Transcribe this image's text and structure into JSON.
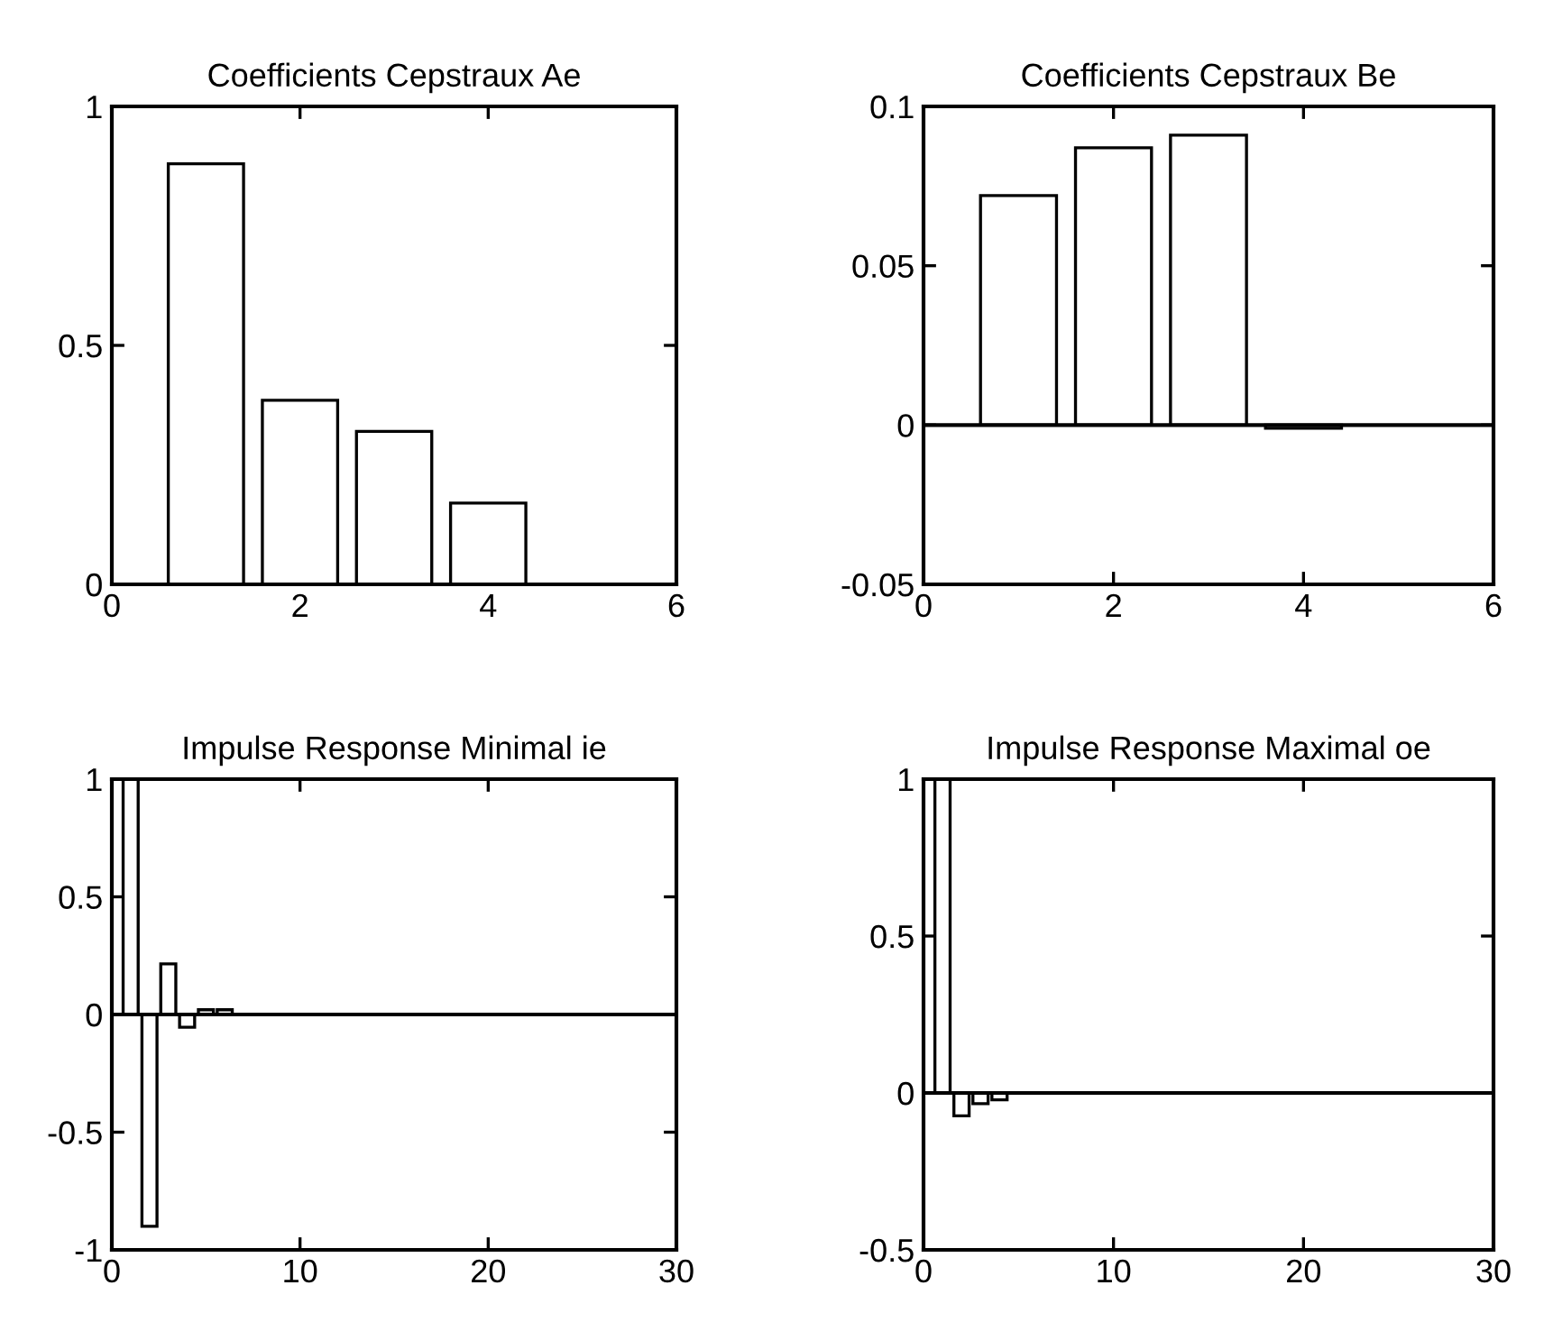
{
  "chart_data": [
    {
      "type": "bar",
      "title": "Coefficients Cepstraux Ae",
      "x": [
        1,
        2,
        3,
        4
      ],
      "values": [
        0.88,
        0.385,
        0.32,
        0.17
      ],
      "color": "#ffffff",
      "xlim": [
        0,
        6
      ],
      "xticks": [
        0,
        2,
        4,
        6
      ],
      "ylim": [
        0,
        1
      ],
      "yticks": [
        0,
        0.5,
        1
      ],
      "grid": false
    },
    {
      "type": "bar",
      "title": "Coefficients Cepstraux Be",
      "x": [
        1,
        2,
        3,
        4
      ],
      "values": [
        0.072,
        0.087,
        0.091,
        -0.001
      ],
      "color": "#ffffff",
      "xlim": [
        0,
        6
      ],
      "xticks": [
        0,
        2,
        4,
        6
      ],
      "ylim": [
        -0.05,
        0.1
      ],
      "yticks": [
        -0.05,
        0,
        0.05,
        0.1
      ],
      "ref_lines": [
        {
          "axis": "y",
          "value": 0,
          "color": "#000000"
        }
      ],
      "grid": false
    },
    {
      "type": "bar",
      "title": "Impulse Response Minimal ie",
      "x": [
        1,
        2,
        3,
        4,
        5,
        6
      ],
      "values": [
        1,
        -0.9,
        0.215,
        -0.054,
        0.02,
        0.02
      ],
      "color": "#ffffff",
      "xlim": [
        0,
        30
      ],
      "xticks": [
        0,
        10,
        20,
        30
      ],
      "ylim": [
        -1,
        1
      ],
      "yticks": [
        -1,
        -0.5,
        0,
        0.5,
        1
      ],
      "ref_lines": [
        {
          "axis": "y",
          "value": 0,
          "color": "#000000"
        }
      ],
      "grid": false
    },
    {
      "type": "bar",
      "title": "Impulse Response Maximal oe",
      "x": [
        1,
        2,
        3,
        4
      ],
      "values": [
        1,
        -0.073,
        -0.034,
        -0.022
      ],
      "color": "#ffffff",
      "xlim": [
        0,
        30
      ],
      "xticks": [
        0,
        10,
        20,
        30
      ],
      "ylim": [
        -0.5,
        1
      ],
      "yticks": [
        -0.5,
        0,
        0.5,
        1
      ],
      "ref_lines": [
        {
          "axis": "y",
          "value": 0,
          "color": "#000000"
        }
      ],
      "grid": false
    }
  ]
}
